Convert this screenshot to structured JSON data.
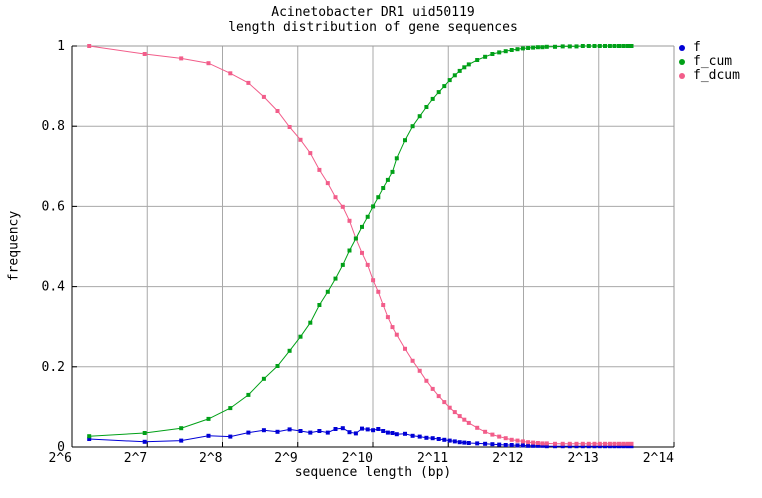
{
  "page": {
    "title_line1": "Acinetobacter DR1 uid50119",
    "title_line2": "length distribution of gene sequences"
  },
  "colors": {
    "background": "#ffffff",
    "grid": "#a8a8a8",
    "axis": "#000000",
    "frame": "#999999",
    "series_f": "#0000d6",
    "series_f_cum": "#00a017",
    "series_f_dcum": "#f25d8a"
  },
  "chart_data": {
    "type": "line",
    "title": "Acinetobacter DR1 uid50119",
    "subtitle": "length distribution of gene sequences",
    "xlabel": "sequence length (bp)",
    "ylabel": "frequency",
    "x_scale": "log2",
    "xlim_log2": [
      6,
      14
    ],
    "ylim": [
      0,
      1
    ],
    "grid": true,
    "legend_position": "outside-top-right",
    "x_tick_labels": [
      "2^6",
      "2^7",
      "2^8",
      "2^9",
      "2^10",
      "2^11",
      "2^12",
      "2^13",
      "2^14"
    ],
    "x_tick_values": [
      64,
      128,
      256,
      512,
      1024,
      2048,
      4096,
      8192,
      16384
    ],
    "y_tick_labels": [
      "0",
      "0.2",
      "0.4",
      "0.6",
      "0.8",
      "1"
    ],
    "y_tick_values": [
      0,
      0.2,
      0.4,
      0.6,
      0.8,
      1
    ],
    "x_bp": [
      75,
      125,
      175,
      225,
      275,
      325,
      375,
      425,
      475,
      525,
      575,
      625,
      675,
      725,
      775,
      825,
      875,
      925,
      975,
      1025,
      1075,
      1125,
      1175,
      1225,
      1275,
      1375,
      1475,
      1575,
      1675,
      1775,
      1875,
      1975,
      2075,
      2175,
      2275,
      2375,
      2475,
      2675,
      2875,
      3075,
      3275,
      3475,
      3675,
      3875,
      4075,
      4275,
      4475,
      4675,
      4875,
      5075,
      5475,
      5875,
      6275,
      6675,
      7075,
      7475,
      7875,
      8275,
      8675,
      9075,
      9475,
      9875,
      10275,
      10675,
      11075
    ],
    "series": [
      {
        "name": "f",
        "color": "#0000d6",
        "values": [
          0.02,
          0.013,
          0.016,
          0.028,
          0.026,
          0.036,
          0.042,
          0.038,
          0.044,
          0.04,
          0.036,
          0.04,
          0.036,
          0.045,
          0.047,
          0.037,
          0.034,
          0.046,
          0.044,
          0.042,
          0.045,
          0.04,
          0.036,
          0.035,
          0.032,
          0.033,
          0.028,
          0.026,
          0.023,
          0.022,
          0.02,
          0.018,
          0.016,
          0.014,
          0.012,
          0.011,
          0.01,
          0.009,
          0.008,
          0.007,
          0.006,
          0.005,
          0.005,
          0.004,
          0.004,
          0.003,
          0.003,
          0.003,
          0.003,
          0.002,
          0.002,
          0.002,
          0.002,
          0.002,
          0.002,
          0.002,
          0.002,
          0.002,
          0.002,
          0.002,
          0.002,
          0.002,
          0.002,
          0.002,
          0.002
        ]
      },
      {
        "name": "f_cum",
        "color": "#00a017",
        "values": [
          0.027,
          0.035,
          0.047,
          0.07,
          0.097,
          0.13,
          0.17,
          0.202,
          0.24,
          0.275,
          0.31,
          0.354,
          0.387,
          0.42,
          0.454,
          0.49,
          0.52,
          0.549,
          0.574,
          0.6,
          0.623,
          0.646,
          0.666,
          0.686,
          0.72,
          0.765,
          0.8,
          0.825,
          0.848,
          0.868,
          0.885,
          0.9,
          0.915,
          0.927,
          0.938,
          0.947,
          0.954,
          0.965,
          0.973,
          0.98,
          0.984,
          0.987,
          0.99,
          0.992,
          0.994,
          0.995,
          0.996,
          0.997,
          0.997,
          0.998,
          0.998,
          0.999,
          0.999,
          0.999,
          1.0,
          1.0,
          1.0,
          1.0,
          1.0,
          1.0,
          1.0,
          1.0,
          1.0,
          1.0,
          1.0
        ]
      },
      {
        "name": "f_dcum",
        "color": "#f25d8a",
        "values": [
          1.0,
          0.98,
          0.969,
          0.957,
          0.932,
          0.908,
          0.873,
          0.838,
          0.798,
          0.766,
          0.733,
          0.691,
          0.658,
          0.623,
          0.599,
          0.564,
          0.52,
          0.484,
          0.454,
          0.416,
          0.387,
          0.354,
          0.324,
          0.299,
          0.28,
          0.245,
          0.215,
          0.19,
          0.165,
          0.145,
          0.127,
          0.112,
          0.098,
          0.087,
          0.077,
          0.068,
          0.06,
          0.048,
          0.038,
          0.031,
          0.026,
          0.022,
          0.018,
          0.016,
          0.014,
          0.012,
          0.011,
          0.01,
          0.009,
          0.009,
          0.008,
          0.008,
          0.008,
          0.008,
          0.008,
          0.008,
          0.008,
          0.008,
          0.008,
          0.008,
          0.008,
          0.008,
          0.008,
          0.008,
          0.008
        ]
      }
    ]
  },
  "legend": {
    "items": [
      {
        "label": "f",
        "color": "#0000d6"
      },
      {
        "label": "f_cum",
        "color": "#00a017"
      },
      {
        "label": "f_dcum",
        "color": "#f25d8a"
      }
    ]
  }
}
